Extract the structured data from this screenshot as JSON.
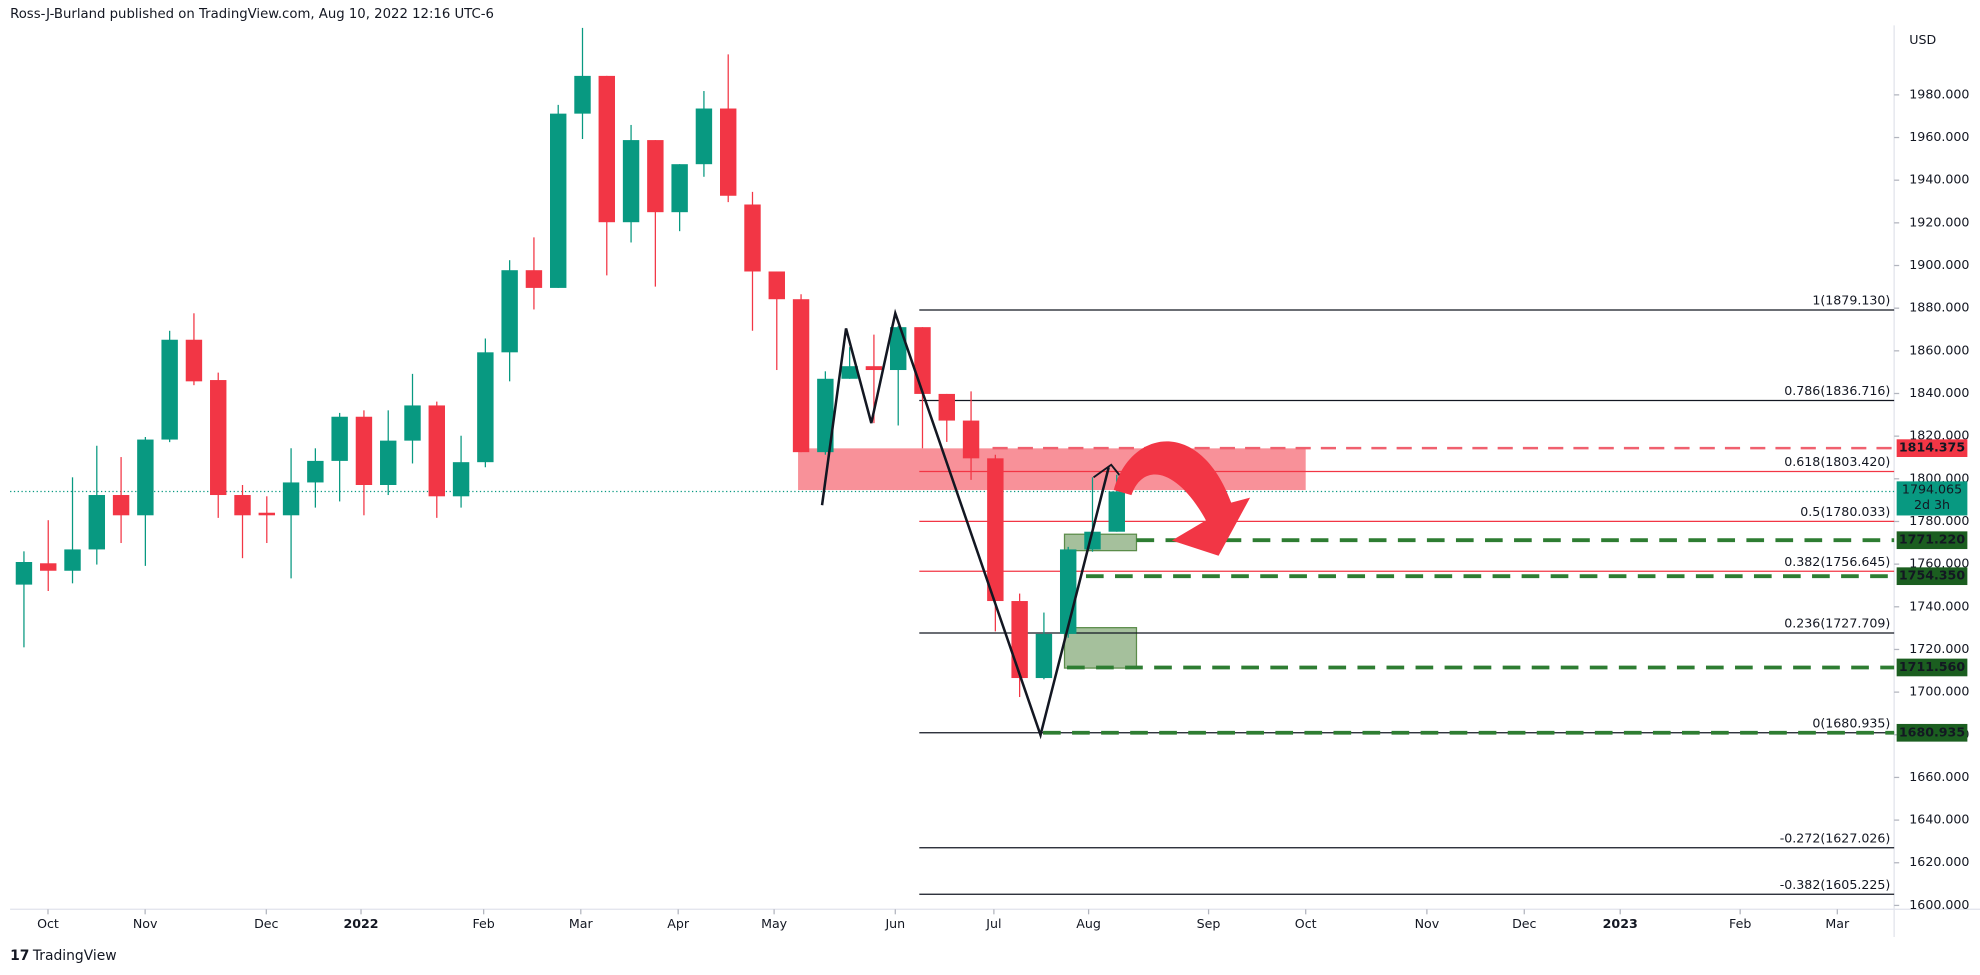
{
  "chart_data": {
    "type": "candlestick",
    "header": "Ross-J-Burland published on TradingView.com, Aug 10, 2022 12:16 UTC-6",
    "watermark": "TradingView",
    "currency": "USD",
    "up_color": "#089981",
    "down_color": "#f23645",
    "x": [
      0,
      1,
      2,
      3,
      4,
      5,
      6,
      7,
      8,
      9,
      10,
      11,
      12,
      13,
      14,
      15,
      16,
      17,
      18,
      19,
      20,
      21,
      22,
      23,
      24,
      25,
      26,
      27,
      28,
      29,
      30,
      31,
      32,
      33,
      34,
      35,
      36,
      37,
      38,
      39,
      40,
      41,
      42,
      43,
      44,
      45
    ],
    "open": [
      1750.4,
      1760.4,
      1756.9,
      1766.9,
      1792.4,
      1782.9,
      1818.4,
      1865.2,
      1846.3,
      1792.4,
      1784.1,
      1782.9,
      1798.3,
      1808.4,
      1829.1,
      1797.1,
      1817.9,
      1834.4,
      1791.8,
      1807.8,
      1859.3,
      1897.8,
      1889.5,
      1971.2,
      1988.9,
      1920.3,
      1958.8,
      1925.0,
      1947.5,
      1973.6,
      1928.6,
      1897.2,
      1884.2,
      1812.5,
      1846.9,
      1852.8,
      1851.0,
      1871.1,
      1839.8,
      1827.3,
      1809.6,
      1742.7,
      1706.6,
      1727.3,
      1766.9,
      1775.2
    ],
    "high": [
      1766.0,
      1780.6,
      1800.7,
      1815.5,
      1810.2,
      1819.6,
      1869.4,
      1877.6,
      1849.8,
      1797.1,
      1791.8,
      1814.3,
      1814.3,
      1830.9,
      1832.1,
      1832.1,
      1849.2,
      1836.2,
      1820.2,
      1865.8,
      1902.5,
      1913.2,
      1975.3,
      2011.4,
      1988.9,
      1965.9,
      1958.8,
      1947.5,
      1981.8,
      1999.0,
      1934.5,
      1897.2,
      1886.5,
      1850.4,
      1861.7,
      1867.6,
      1871.7,
      1871.1,
      1839.8,
      1841.0,
      1811.3,
      1746.2,
      1737.3,
      1768.1,
      1800.7,
      1801.9
    ],
    "low": [
      1721.0,
      1747.4,
      1751.0,
      1759.8,
      1769.9,
      1759.2,
      1817.2,
      1843.9,
      1781.7,
      1762.8,
      1769.9,
      1753.3,
      1786.5,
      1789.4,
      1782.9,
      1792.4,
      1807.2,
      1781.7,
      1786.5,
      1805.4,
      1845.7,
      1879.4,
      1889.5,
      1959.3,
      1895.4,
      1910.8,
      1890.1,
      1916.1,
      1941.6,
      1929.7,
      1869.4,
      1851.0,
      1812.5,
      1811.3,
      1846.9,
      1826.1,
      1825.0,
      1814.3,
      1817.3,
      1799.5,
      1728.5,
      1697.7,
      1706.0,
      1725.5,
      1765.8,
      1775.2
    ],
    "close": [
      1761.0,
      1756.9,
      1766.9,
      1792.4,
      1782.9,
      1818.4,
      1865.2,
      1845.7,
      1792.4,
      1782.9,
      1782.9,
      1798.3,
      1808.4,
      1829.1,
      1797.1,
      1817.9,
      1834.4,
      1791.8,
      1807.8,
      1859.3,
      1897.8,
      1889.5,
      1971.2,
      1988.9,
      1920.3,
      1958.8,
      1925.0,
      1947.5,
      1973.6,
      1932.7,
      1897.2,
      1884.2,
      1812.5,
      1846.9,
      1852.8,
      1851.0,
      1871.1,
      1839.8,
      1827.3,
      1809.6,
      1742.7,
      1706.6,
      1727.3,
      1766.9,
      1775.2,
      1794.065
    ],
    "xlim": [
      -0.57,
      77.01
    ],
    "xticks": [
      {
        "value": 0.99,
        "label": "Oct"
      },
      {
        "value": 4.99,
        "label": "Nov"
      },
      {
        "value": 9.98,
        "label": "Dec"
      },
      {
        "value": 13.88,
        "label": "2022"
      },
      {
        "value": 18.93,
        "label": "Feb"
      },
      {
        "value": 22.93,
        "label": "Mar"
      },
      {
        "value": 26.94,
        "label": "Apr"
      },
      {
        "value": 30.89,
        "label": "May"
      },
      {
        "value": 35.88,
        "label": "Jun"
      },
      {
        "value": 39.94,
        "label": "Jul"
      },
      {
        "value": 43.84,
        "label": "Aug"
      },
      {
        "value": 48.78,
        "label": "Sep"
      },
      {
        "value": 52.78,
        "label": "Oct"
      },
      {
        "value": 57.77,
        "label": "Nov"
      },
      {
        "value": 61.78,
        "label": "Dec"
      },
      {
        "value": 65.73,
        "label": "2023"
      },
      {
        "value": 70.67,
        "label": "Feb"
      },
      {
        "value": 74.67,
        "label": "Mar"
      }
    ],
    "ylim": [
      1598.2,
      2012.6
    ],
    "yticks": [
      {
        "value": 1600,
        "label": "1600.000"
      },
      {
        "value": 1620,
        "label": "1620.000"
      },
      {
        "value": 1640,
        "label": "1640.000"
      },
      {
        "value": 1660,
        "label": "1660.000"
      },
      {
        "value": 1680,
        "label": "1680.000"
      },
      {
        "value": 1700,
        "label": "1700.000"
      },
      {
        "value": 1720,
        "label": "1720.000"
      },
      {
        "value": 1740,
        "label": "1740.000"
      },
      {
        "value": 1760,
        "label": "1760.000"
      },
      {
        "value": 1780,
        "label": "1780.000"
      },
      {
        "value": 1800,
        "label": "1800.000"
      },
      {
        "value": 1820,
        "label": "1820.000"
      },
      {
        "value": 1840,
        "label": "1840.000"
      },
      {
        "value": 1860,
        "label": "1860.000"
      },
      {
        "value": 1880,
        "label": "1880.000"
      },
      {
        "value": 1900,
        "label": "1900.000"
      },
      {
        "value": 1920,
        "label": "1920.000"
      },
      {
        "value": 1940,
        "label": "1940.000"
      },
      {
        "value": 1960,
        "label": "1960.000"
      },
      {
        "value": 1980,
        "label": "1980.000"
      }
    ],
    "fib_levels": [
      {
        "value": 1879.13,
        "label": "1(1879.130)",
        "color": "#131722"
      },
      {
        "value": 1836.716,
        "label": "0.786(1836.716)",
        "color": "#131722"
      },
      {
        "value": 1803.42,
        "label": "0.618(1803.420)",
        "color": "#f23645"
      },
      {
        "value": 1780.033,
        "label": "0.5(1780.033)",
        "color": "#f23645"
      },
      {
        "value": 1756.645,
        "label": "0.382(1756.645)",
        "color": "#f23645"
      },
      {
        "value": 1727.709,
        "label": "0.236(1727.709)",
        "color": "#131722"
      },
      {
        "value": 1680.935,
        "label": "0(1680.935)",
        "color": "#131722"
      },
      {
        "value": 1627.026,
        "label": "-0.272(1627.026)",
        "color": "#131722"
      },
      {
        "value": 1605.225,
        "label": "-0.382(1605.225)",
        "color": "#131722"
      }
    ],
    "levels": [
      {
        "value": 1814.375,
        "label": "1814.375",
        "color": "#f23645"
      },
      {
        "value": 1771.22,
        "label": "1771.220",
        "color": "#1b5e20"
      },
      {
        "value": 1754.35,
        "label": "1754.350",
        "color": "#1b5e20"
      },
      {
        "value": 1711.56,
        "label": "1711.560",
        "color": "#1b5e20"
      },
      {
        "value": 1680.935,
        "label": "1680.935",
        "color": "#1b5e20"
      }
    ],
    "last_price": {
      "value": 1794.065,
      "label": "1794.065",
      "countdown": "2d 3h",
      "color": "#089981"
    }
  }
}
